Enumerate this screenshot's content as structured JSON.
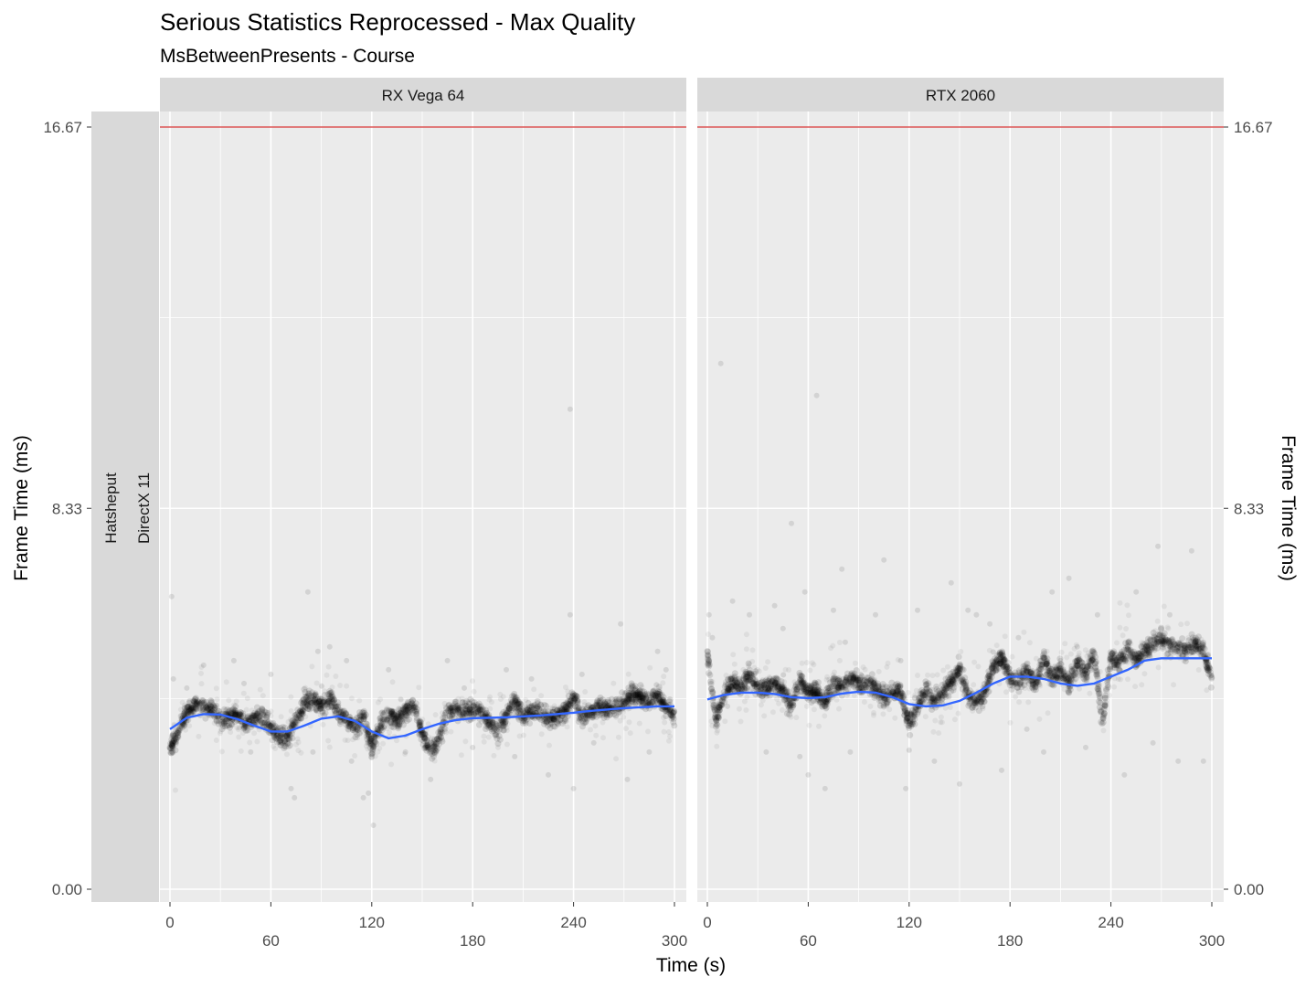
{
  "chart_data": {
    "type": "scatter",
    "title": "Serious Statistics Reprocessed - Max Quality",
    "subtitle": "MsBetweenPresents - Course",
    "xlabel": "Time (s)",
    "ylabel": "Frame Time (ms)",
    "ylabel_right": "Frame Time (ms)",
    "row_strips": [
      "Hatsheput",
      "DirectX 11"
    ],
    "xlim": [
      0,
      300
    ],
    "ylim": [
      0,
      16.67
    ],
    "x_ticks": [
      "0",
      "60",
      "120",
      "180",
      "240",
      "300"
    ],
    "y_ticks": [
      "0.00",
      "8.33",
      "16.67"
    ],
    "y_tick_values": [
      0,
      8.33,
      16.67
    ],
    "reference_line": {
      "y": 16.67,
      "color": "#cc0000"
    },
    "colors": {
      "panel_bg": "#ebebeb",
      "strip_bg": "#d9d9d9",
      "grid": "#ffffff",
      "points": "#000000",
      "smooth": "#3366ff"
    },
    "grid": true,
    "panels": [
      {
        "name": "RX Vega 64",
        "smooth": {
          "x": [
            0,
            10,
            20,
            30,
            40,
            50,
            60,
            70,
            80,
            90,
            100,
            110,
            120,
            130,
            140,
            150,
            160,
            170,
            180,
            190,
            200,
            210,
            220,
            230,
            240,
            250,
            260,
            270,
            280,
            290,
            300
          ],
          "y": [
            3.5,
            3.75,
            3.83,
            3.82,
            3.72,
            3.58,
            3.45,
            3.45,
            3.58,
            3.73,
            3.78,
            3.68,
            3.45,
            3.3,
            3.36,
            3.5,
            3.62,
            3.7,
            3.74,
            3.75,
            3.76,
            3.78,
            3.8,
            3.83,
            3.86,
            3.9,
            3.93,
            3.96,
            3.98,
            4.0,
            4.0
          ]
        },
        "band": {
          "x": [
            0,
            5,
            10,
            15,
            20,
            25,
            30,
            35,
            40,
            45,
            50,
            55,
            60,
            65,
            70,
            75,
            80,
            85,
            90,
            95,
            100,
            105,
            110,
            115,
            120,
            125,
            130,
            135,
            140,
            145,
            150,
            155,
            160,
            165,
            170,
            175,
            180,
            185,
            190,
            195,
            200,
            205,
            210,
            215,
            220,
            225,
            230,
            235,
            240,
            245,
            250,
            255,
            260,
            265,
            270,
            275,
            280,
            285,
            290,
            295,
            300
          ],
          "y": [
            3.1,
            3.4,
            3.9,
            4.05,
            4.0,
            3.95,
            3.7,
            3.8,
            3.85,
            3.6,
            3.75,
            3.8,
            3.5,
            3.35,
            3.3,
            3.7,
            4.1,
            4.2,
            4.0,
            4.15,
            3.9,
            3.7,
            3.5,
            3.8,
            3.1,
            3.6,
            3.8,
            3.7,
            3.9,
            4.0,
            3.4,
            3.0,
            3.3,
            3.9,
            3.9,
            3.85,
            3.95,
            3.9,
            3.65,
            3.4,
            3.8,
            4.1,
            3.8,
            3.85,
            3.9,
            3.7,
            3.8,
            3.9,
            4.2,
            3.75,
            3.9,
            4.0,
            3.95,
            4.0,
            4.05,
            4.3,
            4.2,
            4.1,
            4.25,
            4.0,
            3.8
          ]
        },
        "outliers": [
          [
            1,
            6.4
          ],
          [
            2,
            4.6
          ],
          [
            10,
            4.4
          ],
          [
            20,
            4.9
          ],
          [
            38,
            5.0
          ],
          [
            44,
            4.5
          ],
          [
            48,
            3.0
          ],
          [
            60,
            4.7
          ],
          [
            72,
            2.2
          ],
          [
            74,
            2.0
          ],
          [
            82,
            6.5
          ],
          [
            85,
            3.0
          ],
          [
            88,
            5.2
          ],
          [
            95,
            5.3
          ],
          [
            105,
            5.0
          ],
          [
            108,
            2.8
          ],
          [
            115,
            2.0
          ],
          [
            118,
            2.1
          ],
          [
            121,
            1.4
          ],
          [
            130,
            4.8
          ],
          [
            140,
            3.0
          ],
          [
            148,
            3.4
          ],
          [
            155,
            2.4
          ],
          [
            165,
            5.0
          ],
          [
            175,
            4.4
          ],
          [
            180,
            3.1
          ],
          [
            200,
            4.8
          ],
          [
            205,
            2.9
          ],
          [
            215,
            4.6
          ],
          [
            225,
            2.5
          ],
          [
            238,
            6.0
          ],
          [
            238,
            10.5
          ],
          [
            240,
            2.2
          ],
          [
            245,
            4.7
          ],
          [
            252,
            3.2
          ],
          [
            268,
            5.8
          ],
          [
            272,
            2.4
          ],
          [
            285,
            3.0
          ],
          [
            290,
            5.2
          ],
          [
            295,
            4.8
          ]
        ]
      },
      {
        "name": "RTX 2060",
        "smooth": {
          "x": [
            0,
            10,
            20,
            30,
            40,
            50,
            60,
            70,
            80,
            90,
            100,
            110,
            120,
            130,
            140,
            150,
            160,
            170,
            180,
            190,
            200,
            210,
            220,
            230,
            240,
            250,
            260,
            270,
            280,
            290,
            300
          ],
          "y": [
            4.15,
            4.25,
            4.3,
            4.3,
            4.27,
            4.2,
            4.18,
            4.2,
            4.28,
            4.32,
            4.3,
            4.2,
            4.05,
            4.0,
            4.02,
            4.12,
            4.3,
            4.5,
            4.65,
            4.65,
            4.6,
            4.5,
            4.45,
            4.5,
            4.65,
            4.8,
            5.0,
            5.05,
            5.05,
            5.05,
            5.05
          ]
        },
        "band": {
          "x": [
            0,
            5,
            10,
            15,
            20,
            25,
            30,
            35,
            40,
            45,
            50,
            55,
            60,
            65,
            70,
            75,
            80,
            85,
            90,
            95,
            100,
            105,
            110,
            115,
            120,
            125,
            130,
            135,
            140,
            145,
            150,
            155,
            160,
            165,
            170,
            175,
            180,
            185,
            190,
            195,
            200,
            205,
            210,
            215,
            220,
            225,
            230,
            235,
            240,
            245,
            250,
            255,
            260,
            265,
            270,
            275,
            280,
            285,
            290,
            295,
            300
          ],
          "y": [
            5.2,
            3.7,
            4.3,
            4.5,
            4.4,
            4.7,
            4.4,
            4.4,
            4.5,
            4.3,
            4.0,
            4.6,
            4.3,
            4.3,
            4.1,
            4.5,
            4.4,
            4.6,
            4.5,
            4.5,
            4.4,
            4.2,
            4.3,
            4.3,
            3.6,
            4.0,
            4.4,
            4.1,
            4.3,
            4.5,
            4.8,
            4.2,
            4.1,
            4.3,
            4.9,
            5.1,
            4.6,
            4.5,
            4.8,
            4.4,
            5.1,
            4.6,
            4.8,
            4.5,
            5.0,
            4.7,
            5.2,
            3.6,
            5.1,
            4.9,
            5.3,
            5.0,
            5.2,
            5.4,
            5.5,
            5.3,
            5.3,
            5.2,
            5.4,
            5.2,
            4.6
          ]
        },
        "outliers": [
          [
            1,
            6.0
          ],
          [
            3,
            5.5
          ],
          [
            8,
            11.5
          ],
          [
            12,
            4.0
          ],
          [
            15,
            6.3
          ],
          [
            25,
            6.0
          ],
          [
            35,
            3.0
          ],
          [
            40,
            6.2
          ],
          [
            45,
            5.7
          ],
          [
            50,
            8.0
          ],
          [
            55,
            2.9
          ],
          [
            58,
            6.5
          ],
          [
            60,
            2.5
          ],
          [
            65,
            10.8
          ],
          [
            70,
            2.2
          ],
          [
            75,
            6.1
          ],
          [
            80,
            7.0
          ],
          [
            82,
            5.4
          ],
          [
            85,
            3.0
          ],
          [
            100,
            6.0
          ],
          [
            105,
            7.2
          ],
          [
            115,
            5.0
          ],
          [
            118,
            2.2
          ],
          [
            125,
            6.1
          ],
          [
            135,
            2.8
          ],
          [
            145,
            6.7
          ],
          [
            150,
            2.3
          ],
          [
            155,
            6.1
          ],
          [
            160,
            6.0
          ],
          [
            168,
            5.8
          ],
          [
            175,
            2.6
          ],
          [
            185,
            5.5
          ],
          [
            190,
            3.5
          ],
          [
            200,
            3.0
          ],
          [
            205,
            6.5
          ],
          [
            210,
            5.0
          ],
          [
            215,
            6.8
          ],
          [
            220,
            5.3
          ],
          [
            225,
            3.1
          ],
          [
            232,
            6.0
          ],
          [
            240,
            5.0
          ],
          [
            248,
            2.5
          ],
          [
            255,
            6.5
          ],
          [
            265,
            3.2
          ],
          [
            268,
            7.5
          ],
          [
            275,
            6.0
          ],
          [
            280,
            2.8
          ],
          [
            288,
            7.4
          ],
          [
            295,
            2.8
          ]
        ]
      }
    ]
  }
}
